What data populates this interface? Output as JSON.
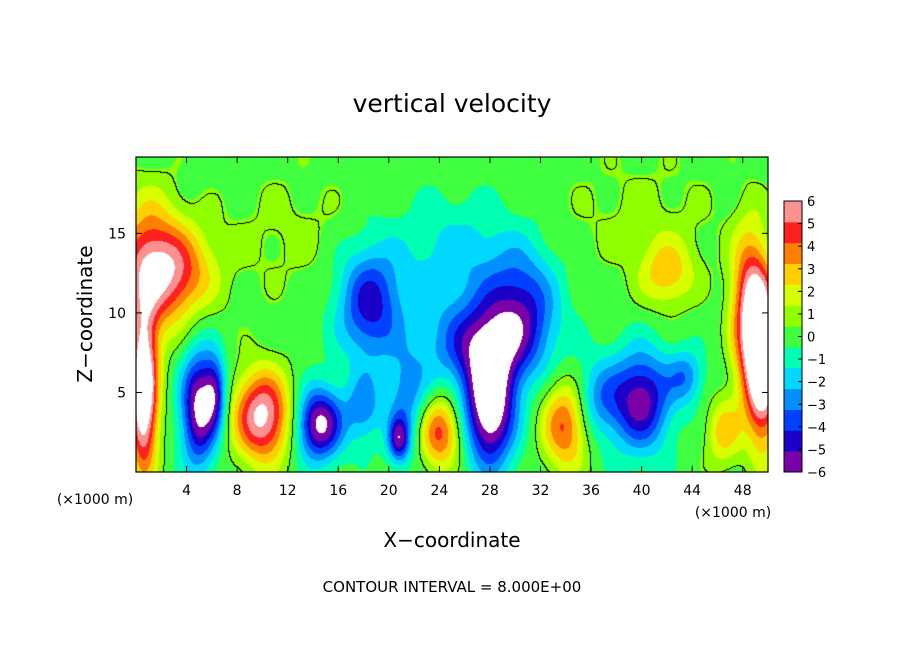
{
  "chart_data": {
    "type": "heatmap",
    "title": "vertical velocity",
    "xlabel": "X−coordinate",
    "ylabel": "Z−coordinate",
    "x_unit_left": "(×1000 m)",
    "x_unit_right": "(×1000 m)",
    "footer": "CONTOUR INTERVAL = 8.000E+00",
    "xlim": [
      0,
      50
    ],
    "ylim": [
      0,
      19.8
    ],
    "x_ticks": [
      4,
      8,
      12,
      16,
      20,
      24,
      28,
      32,
      36,
      40,
      44,
      48
    ],
    "x_tick_labels": [
      "4",
      "8",
      "12",
      "16",
      "20",
      "24",
      "28",
      "32",
      "36",
      "40",
      "44",
      "48"
    ],
    "y_ticks": [
      5,
      10,
      15
    ],
    "y_tick_labels": [
      "5",
      "10",
      "15"
    ],
    "colorbar": {
      "levels": [
        -6,
        -5,
        -4,
        -3,
        -2,
        -1,
        0,
        1,
        2,
        3,
        4,
        5,
        6
      ],
      "labels": [
        "6",
        "5",
        "4",
        "3",
        "2",
        "1",
        "0",
        "−1",
        "−2",
        "−3",
        "−4",
        "−5",
        "−6"
      ],
      "colors": [
        "#7a00a8",
        "#1a00c8",
        "#0040ff",
        "#0090ff",
        "#00d8ff",
        "#00ffb0",
        "#40ff40",
        "#90ff00",
        "#d8ff00",
        "#ffd000",
        "#ff8000",
        "#ff2020",
        "#ff9090"
      ],
      "over_color": "#ffffff",
      "under_color": "#ffffff"
    },
    "background_color": "#40ff40",
    "features": [
      {
        "x": 1.0,
        "z": 13.0,
        "sx": 1.8,
        "sz": 3.0,
        "value": 5
      },
      {
        "x": 3.5,
        "z": 12.5,
        "sx": 2.0,
        "sz": 2.0,
        "value": 4
      },
      {
        "x": 0.6,
        "z": 5.0,
        "sx": 0.8,
        "sz": 3.5,
        "value": 9
      },
      {
        "x": 5.0,
        "z": 4.0,
        "sx": 1.0,
        "sz": 2.5,
        "value": -7
      },
      {
        "x": 6.3,
        "z": 5.0,
        "sx": 0.6,
        "sz": 1.6,
        "value": -4
      },
      {
        "x": 10.0,
        "z": 3.5,
        "sx": 1.6,
        "sz": 2.0,
        "value": 7
      },
      {
        "x": 14.5,
        "z": 3.0,
        "sx": 1.3,
        "sz": 1.6,
        "value": -7
      },
      {
        "x": 18.5,
        "z": 10.5,
        "sx": 1.8,
        "sz": 2.5,
        "value": -5
      },
      {
        "x": 18.0,
        "z": 4.0,
        "sx": 1.0,
        "sz": 1.5,
        "value": -3
      },
      {
        "x": 21.5,
        "z": 4.5,
        "sx": 1.2,
        "sz": 2.2,
        "value": -3
      },
      {
        "x": 20.8,
        "z": 2.0,
        "sx": 0.6,
        "sz": 1.0,
        "value": -5
      },
      {
        "x": 24.0,
        "z": 2.5,
        "sx": 1.2,
        "sz": 1.6,
        "value": 5
      },
      {
        "x": 27.5,
        "z": 8.0,
        "sx": 3.0,
        "sz": 2.0,
        "value": -5
      },
      {
        "x": 28.0,
        "z": 4.0,
        "sx": 1.4,
        "sz": 2.6,
        "value": -8
      },
      {
        "x": 30.5,
        "z": 10.5,
        "sx": 2.0,
        "sz": 2.5,
        "value": -4
      },
      {
        "x": 25.5,
        "z": 13.5,
        "sx": 3.5,
        "sz": 2.5,
        "value": -2
      },
      {
        "x": 34.0,
        "z": 3.0,
        "sx": 1.3,
        "sz": 2.0,
        "value": 5
      },
      {
        "x": 36.5,
        "z": 4.5,
        "sx": 1.5,
        "sz": 1.8,
        "value": -3
      },
      {
        "x": 40.0,
        "z": 4.5,
        "sx": 1.6,
        "sz": 2.2,
        "value": -6
      },
      {
        "x": 42.0,
        "z": 12.5,
        "sx": 1.5,
        "sz": 1.5,
        "value": 3
      },
      {
        "x": 43.5,
        "z": 6.0,
        "sx": 1.0,
        "sz": 1.2,
        "value": -3
      },
      {
        "x": 48.5,
        "z": 10.0,
        "sx": 1.0,
        "sz": 3.5,
        "value": 6
      },
      {
        "x": 49.6,
        "z": 7.0,
        "sx": 0.9,
        "sz": 3.5,
        "value": 9
      },
      {
        "x": 46.5,
        "z": 2.5,
        "sx": 1.0,
        "sz": 1.5,
        "value": 3
      },
      {
        "x": 12.0,
        "z": 15.0,
        "sx": 4.0,
        "sz": 3.0,
        "value": 0.8
      },
      {
        "x": 40.0,
        "z": 16.0,
        "sx": 5.0,
        "sz": 3.0,
        "value": 0.8
      }
    ]
  }
}
